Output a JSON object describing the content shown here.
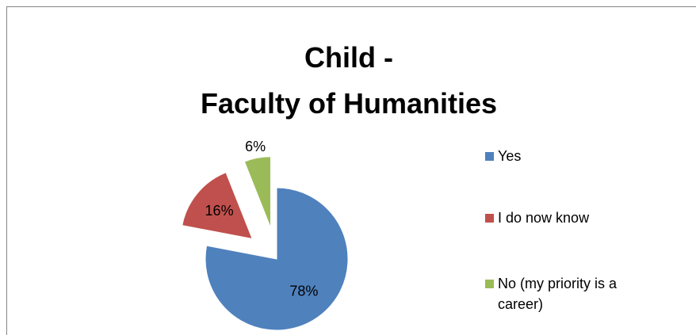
{
  "chart_data": {
    "type": "pie",
    "title": "Child -\nFaculty of Humanities",
    "categories": [
      "Yes",
      "I do now know",
      "No (my priority is a career)"
    ],
    "values": [
      78,
      16,
      6
    ],
    "value_labels": [
      "78%",
      "16%",
      "6%"
    ],
    "colors": [
      "#4f81bd",
      "#c0504d",
      "#9bbb59"
    ],
    "legend": "right"
  }
}
